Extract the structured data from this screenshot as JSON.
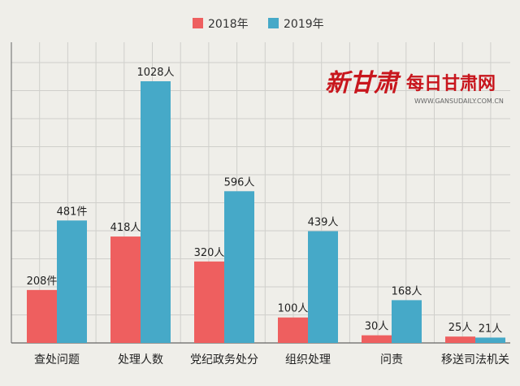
{
  "chart_data": {
    "type": "bar",
    "categories": [
      "查处问题",
      "处理人数",
      "党纪政务处分",
      "组织处理",
      "问责",
      "移送司法机关"
    ],
    "series": [
      {
        "name": "2018年",
        "color": "#ee5f5f",
        "values": [
          208,
          418,
          320,
          100,
          30,
          25
        ],
        "labels": [
          "208件",
          "418人",
          "320人",
          "100人",
          "30人",
          "25人"
        ]
      },
      {
        "name": "2019年",
        "color": "#46a9c8",
        "values": [
          481,
          1028,
          596,
          439,
          168,
          21
        ],
        "labels": [
          "481件",
          "1028人",
          "596人",
          "439人",
          "168人",
          "21人"
        ]
      }
    ],
    "ylim": [
      0,
      1100
    ],
    "grid": true,
    "legend_position": "top-center"
  },
  "branding": {
    "site_name_art": "新甘肃",
    "site_name": "每日甘肃网",
    "site_url": "WWW.GANSUDAILY.COM.CN",
    "color": "#c8161d"
  }
}
